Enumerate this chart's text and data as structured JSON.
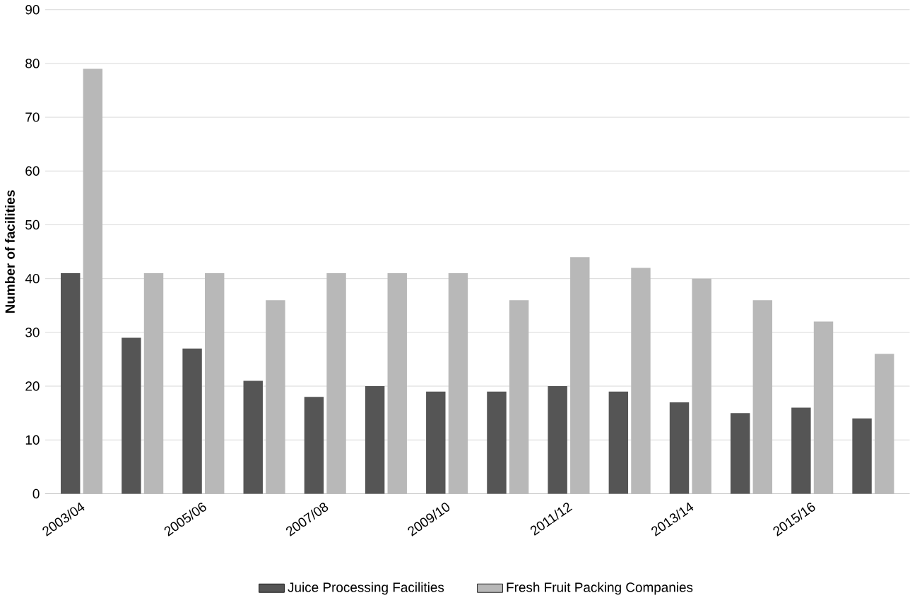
{
  "chart_data": {
    "type": "bar",
    "ylabel": "Number of facilities",
    "categories": [
      "2003/04",
      null,
      "2005/06",
      null,
      "2007/08",
      null,
      "2009/10",
      null,
      "2011/12",
      null,
      "2013/14",
      null,
      "2015/16",
      null
    ],
    "series": [
      {
        "name": "Juice Processing Facilities",
        "color": "#555555",
        "values": [
          41,
          29,
          27,
          21,
          18,
          20,
          19,
          19,
          20,
          19,
          17,
          15,
          16,
          14
        ]
      },
      {
        "name": "Fresh Fruit Packing Companies",
        "color": "#b8b8b8",
        "values": [
          79,
          41,
          41,
          36,
          41,
          41,
          41,
          36,
          44,
          42,
          40,
          36,
          32,
          26
        ]
      }
    ],
    "ylim": [
      0,
      90
    ],
    "yticks": [
      0,
      10,
      20,
      30,
      40,
      50,
      60,
      70,
      80,
      90
    ],
    "grid": "y",
    "legend": "bottom"
  }
}
